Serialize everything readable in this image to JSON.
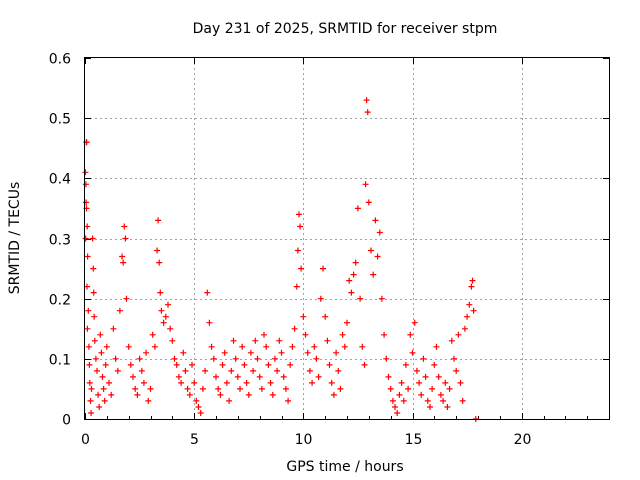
{
  "chart_data": {
    "type": "scatter",
    "title": "Day 231 of 2025, SRMTID for receiver stpm",
    "xlabel": "GPS time / hours",
    "ylabel": "SRMTID / TECUs",
    "xlim": [
      0,
      24
    ],
    "ylim": [
      0,
      0.6
    ],
    "xticks": [
      0,
      5,
      10,
      15,
      20
    ],
    "yticks": [
      0,
      0.1,
      0.2,
      0.3,
      0.4,
      0.5,
      0.6
    ],
    "xtick_labels": [
      "0",
      "5",
      "10",
      "15",
      "20"
    ],
    "ytick_labels": [
      "0",
      "0.1",
      "0.2",
      "0.3",
      "0.4",
      "0.5",
      "0.6"
    ],
    "grid": true,
    "marker": "+",
    "color": "#ff0000",
    "series": [
      {
        "name": "SRMTID",
        "points": [
          [
            0.02,
            0.41
          ],
          [
            0.04,
            0.39
          ],
          [
            0.06,
            0.46
          ],
          [
            0.08,
            0.46
          ],
          [
            0.05,
            0.36
          ],
          [
            0.07,
            0.35
          ],
          [
            0.1,
            0.32
          ],
          [
            0.03,
            0.3
          ],
          [
            0.12,
            0.27
          ],
          [
            0.09,
            0.22
          ],
          [
            0.15,
            0.18
          ],
          [
            0.11,
            0.15
          ],
          [
            0.18,
            0.12
          ],
          [
            0.2,
            0.09
          ],
          [
            0.22,
            0.06
          ],
          [
            0.25,
            0.03
          ],
          [
            0.28,
            0.01
          ],
          [
            0.3,
            0.05
          ],
          [
            0.35,
            0.3
          ],
          [
            0.38,
            0.25
          ],
          [
            0.4,
            0.21
          ],
          [
            0.42,
            0.17
          ],
          [
            0.45,
            0.13
          ],
          [
            0.5,
            0.1
          ],
          [
            0.55,
            0.08
          ],
          [
            0.6,
            0.04
          ],
          [
            0.65,
            0.02
          ],
          [
            0.7,
            0.14
          ],
          [
            0.75,
            0.11
          ],
          [
            0.8,
            0.07
          ],
          [
            0.85,
            0.05
          ],
          [
            0.9,
            0.03
          ],
          [
            0.95,
            0.09
          ],
          [
            1.0,
            0.12
          ],
          [
            1.1,
            0.06
          ],
          [
            1.2,
            0.04
          ],
          [
            1.3,
            0.15
          ],
          [
            1.4,
            0.1
          ],
          [
            1.5,
            0.08
          ],
          [
            1.6,
            0.18
          ],
          [
            1.7,
            0.27
          ],
          [
            1.75,
            0.26
          ],
          [
            1.8,
            0.32
          ],
          [
            1.85,
            0.3
          ],
          [
            1.9,
            0.2
          ],
          [
            2.0,
            0.12
          ],
          [
            2.1,
            0.09
          ],
          [
            2.2,
            0.07
          ],
          [
            2.3,
            0.05
          ],
          [
            2.4,
            0.04
          ],
          [
            2.5,
            0.1
          ],
          [
            2.6,
            0.08
          ],
          [
            2.7,
            0.06
          ],
          [
            2.8,
            0.11
          ],
          [
            2.9,
            0.03
          ],
          [
            3.0,
            0.05
          ],
          [
            3.1,
            0.14
          ],
          [
            3.2,
            0.12
          ],
          [
            3.3,
            0.28
          ],
          [
            3.35,
            0.33
          ],
          [
            3.4,
            0.26
          ],
          [
            3.45,
            0.21
          ],
          [
            3.5,
            0.18
          ],
          [
            3.6,
            0.16
          ],
          [
            3.7,
            0.17
          ],
          [
            3.8,
            0.19
          ],
          [
            3.9,
            0.15
          ],
          [
            4.0,
            0.13
          ],
          [
            4.1,
            0.1
          ],
          [
            4.2,
            0.09
          ],
          [
            4.3,
            0.07
          ],
          [
            4.4,
            0.06
          ],
          [
            4.5,
            0.11
          ],
          [
            4.6,
            0.08
          ],
          [
            4.7,
            0.05
          ],
          [
            4.8,
            0.04
          ],
          [
            4.9,
            0.09
          ],
          [
            5.0,
            0.06
          ],
          [
            5.1,
            0.03
          ],
          [
            5.2,
            0.02
          ],
          [
            5.3,
            0.01
          ],
          [
            5.4,
            0.05
          ],
          [
            5.5,
            0.08
          ],
          [
            5.6,
            0.21
          ],
          [
            5.7,
            0.16
          ],
          [
            5.8,
            0.12
          ],
          [
            5.9,
            0.1
          ],
          [
            6.0,
            0.07
          ],
          [
            6.1,
            0.05
          ],
          [
            6.2,
            0.04
          ],
          [
            6.3,
            0.09
          ],
          [
            6.4,
            0.11
          ],
          [
            6.5,
            0.06
          ],
          [
            6.6,
            0.03
          ],
          [
            6.7,
            0.08
          ],
          [
            6.8,
            0.13
          ],
          [
            6.9,
            0.1
          ],
          [
            7.0,
            0.07
          ],
          [
            7.1,
            0.05
          ],
          [
            7.2,
            0.12
          ],
          [
            7.3,
            0.09
          ],
          [
            7.4,
            0.06
          ],
          [
            7.5,
            0.04
          ],
          [
            7.6,
            0.11
          ],
          [
            7.7,
            0.08
          ],
          [
            7.8,
            0.13
          ],
          [
            7.9,
            0.1
          ],
          [
            8.0,
            0.07
          ],
          [
            8.1,
            0.05
          ],
          [
            8.2,
            0.14
          ],
          [
            8.3,
            0.12
          ],
          [
            8.4,
            0.09
          ],
          [
            8.5,
            0.06
          ],
          [
            8.6,
            0.04
          ],
          [
            8.7,
            0.1
          ],
          [
            8.8,
            0.08
          ],
          [
            8.9,
            0.13
          ],
          [
            9.0,
            0.11
          ],
          [
            9.1,
            0.07
          ],
          [
            9.2,
            0.05
          ],
          [
            9.3,
            0.03
          ],
          [
            9.4,
            0.09
          ],
          [
            9.5,
            0.12
          ],
          [
            9.6,
            0.15
          ],
          [
            9.7,
            0.22
          ],
          [
            9.75,
            0.28
          ],
          [
            9.8,
            0.34
          ],
          [
            9.85,
            0.32
          ],
          [
            9.9,
            0.25
          ],
          [
            10.0,
            0.17
          ],
          [
            10.1,
            0.14
          ],
          [
            10.2,
            0.11
          ],
          [
            10.3,
            0.08
          ],
          [
            10.4,
            0.06
          ],
          [
            10.5,
            0.12
          ],
          [
            10.6,
            0.1
          ],
          [
            10.7,
            0.07
          ],
          [
            10.8,
            0.2
          ],
          [
            10.9,
            0.25
          ],
          [
            11.0,
            0.17
          ],
          [
            11.1,
            0.13
          ],
          [
            11.2,
            0.09
          ],
          [
            11.3,
            0.06
          ],
          [
            11.4,
            0.04
          ],
          [
            11.5,
            0.11
          ],
          [
            11.6,
            0.08
          ],
          [
            11.7,
            0.05
          ],
          [
            11.8,
            0.14
          ],
          [
            11.9,
            0.12
          ],
          [
            12.0,
            0.16
          ],
          [
            12.1,
            0.23
          ],
          [
            12.2,
            0.21
          ],
          [
            12.3,
            0.24
          ],
          [
            12.4,
            0.26
          ],
          [
            12.5,
            0.35
          ],
          [
            12.6,
            0.2
          ],
          [
            12.7,
            0.12
          ],
          [
            12.8,
            0.09
          ],
          [
            12.85,
            0.39
          ],
          [
            12.9,
            0.53
          ],
          [
            12.95,
            0.51
          ],
          [
            13.0,
            0.36
          ],
          [
            13.1,
            0.28
          ],
          [
            13.2,
            0.24
          ],
          [
            13.3,
            0.33
          ],
          [
            13.4,
            0.27
          ],
          [
            13.5,
            0.31
          ],
          [
            13.6,
            0.2
          ],
          [
            13.7,
            0.14
          ],
          [
            13.8,
            0.1
          ],
          [
            13.9,
            0.07
          ],
          [
            14.0,
            0.05
          ],
          [
            14.1,
            0.03
          ],
          [
            14.2,
            0.02
          ],
          [
            14.3,
            0.01
          ],
          [
            14.4,
            0.04
          ],
          [
            14.5,
            0.06
          ],
          [
            14.6,
            0.03
          ],
          [
            14.7,
            0.09
          ],
          [
            14.8,
            0.05
          ],
          [
            14.9,
            0.14
          ],
          [
            15.0,
            0.11
          ],
          [
            15.1,
            0.16
          ],
          [
            15.2,
            0.08
          ],
          [
            15.3,
            0.06
          ],
          [
            15.4,
            0.04
          ],
          [
            15.5,
            0.1
          ],
          [
            15.6,
            0.07
          ],
          [
            15.7,
            0.03
          ],
          [
            15.8,
            0.02
          ],
          [
            15.9,
            0.05
          ],
          [
            16.0,
            0.09
          ],
          [
            16.1,
            0.12
          ],
          [
            16.2,
            0.07
          ],
          [
            16.3,
            0.04
          ],
          [
            16.4,
            0.03
          ],
          [
            16.5,
            0.06
          ],
          [
            16.6,
            0.02
          ],
          [
            16.7,
            0.05
          ],
          [
            16.8,
            0.13
          ],
          [
            16.9,
            0.1
          ],
          [
            17.0,
            0.08
          ],
          [
            17.1,
            0.14
          ],
          [
            17.2,
            0.06
          ],
          [
            17.3,
            0.03
          ],
          [
            17.4,
            0.15
          ],
          [
            17.5,
            0.17
          ],
          [
            17.6,
            0.19
          ],
          [
            17.7,
            0.22
          ],
          [
            17.75,
            0.23
          ],
          [
            17.8,
            0.18
          ],
          [
            17.9,
            0.0
          ]
        ]
      }
    ]
  }
}
